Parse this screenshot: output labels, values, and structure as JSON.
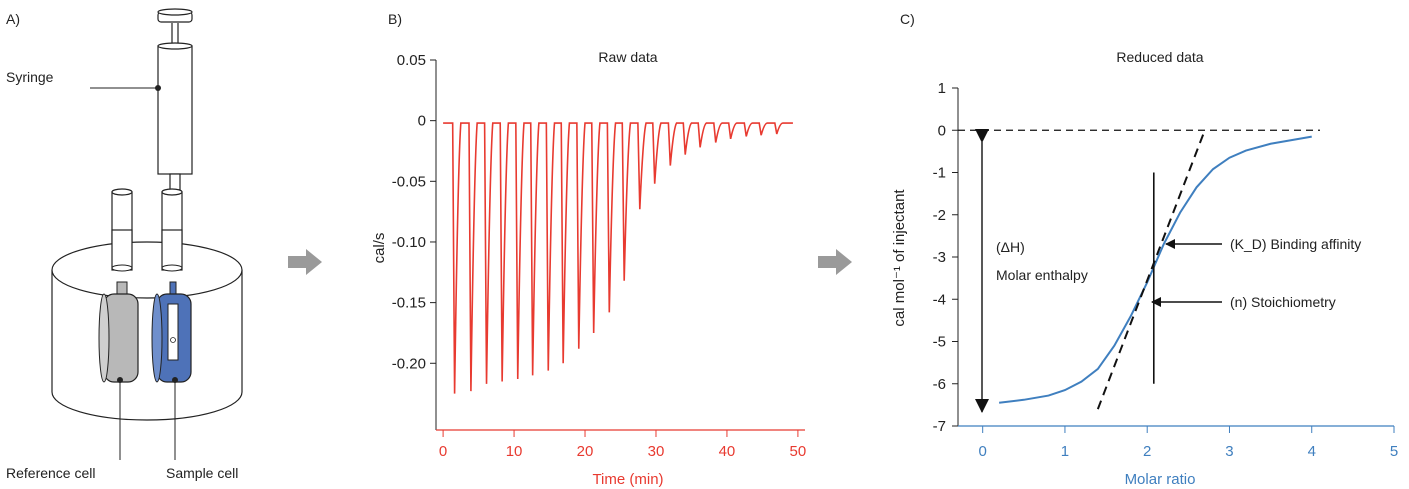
{
  "panels": {
    "a": {
      "letter": "A)",
      "syringe_label": "Syringe",
      "reference_cell_label": "Reference cell",
      "sample_cell_label": "Sample cell"
    },
    "b": {
      "letter": "B)"
    },
    "c": {
      "letter": "C)",
      "annotation_dh_line1": "(ΔH)",
      "annotation_dh_line2": "Molar enthalpy",
      "annotation_kd": "(K_D) Binding affinity",
      "annotation_n": "(n) Stoichiometry"
    }
  },
  "colors": {
    "raw": "#e83a30",
    "fit": "#3f7fbf",
    "arrow_gray": "#9a9a9a",
    "sample_cell": "#4e72b8",
    "reference_cell": "#b8b8b8"
  },
  "chart_data": [
    {
      "type": "line",
      "title": "Raw data",
      "xlabel": "Time (min)",
      "ylabel": "cal/s",
      "xlim": [
        -1,
        51
      ],
      "ylim": [
        -0.255,
        0.05
      ],
      "x_ticks": [
        "0",
        "10",
        "20",
        "30",
        "40",
        "50"
      ],
      "y_ticks": [
        "0.05",
        "0",
        "-0.05",
        "-0.10",
        "-0.15",
        "-0.20"
      ],
      "baseline": -0.002,
      "injection_times": [
        1.5,
        3.8,
        6.0,
        8.2,
        10.4,
        12.5,
        14.7,
        16.8,
        19.0,
        21.1,
        23.3,
        25.4,
        27.6,
        29.7,
        31.9,
        34.0,
        36.1,
        38.3,
        40.4,
        42.6,
        44.7,
        46.9
      ],
      "peak_minima": [
        -0.225,
        -0.223,
        -0.217,
        -0.215,
        -0.213,
        -0.21,
        -0.206,
        -0.2,
        -0.188,
        -0.175,
        -0.158,
        -0.132,
        -0.073,
        -0.052,
        -0.037,
        -0.028,
        -0.022,
        -0.018,
        -0.015,
        -0.013,
        -0.012,
        -0.011
      ]
    },
    {
      "type": "line",
      "title": "Reduced data",
      "xlabel": "Molar ratio",
      "ylabel": "cal mol⁻¹ of injectant",
      "xlim": [
        -0.3,
        5
      ],
      "ylim": [
        -7,
        1
      ],
      "x_ticks": [
        "0",
        "1",
        "2",
        "3",
        "4",
        "5"
      ],
      "y_ticks": [
        "1",
        "0",
        "-1",
        "-2",
        "-3",
        "-4",
        "-5",
        "-6",
        "-7"
      ],
      "fit_x": [
        0.2,
        0.5,
        0.8,
        1.0,
        1.2,
        1.4,
        1.6,
        1.8,
        2.0,
        2.2,
        2.4,
        2.6,
        2.8,
        3.0,
        3.2,
        3.5,
        4.0
      ],
      "fit_y": [
        -6.45,
        -6.38,
        -6.28,
        -6.15,
        -5.95,
        -5.65,
        -5.1,
        -4.4,
        -3.6,
        -2.7,
        -1.95,
        -1.35,
        -0.92,
        -0.65,
        -0.48,
        -0.32,
        -0.15
      ],
      "tangent": {
        "x": [
          1.4,
          2.7
        ],
        "y": [
          -6.6,
          0
        ]
      },
      "midpoint_x": 2.08,
      "midpoint_y_range": [
        -6.0,
        -1.0
      ],
      "zero_line_y": 0
    }
  ]
}
